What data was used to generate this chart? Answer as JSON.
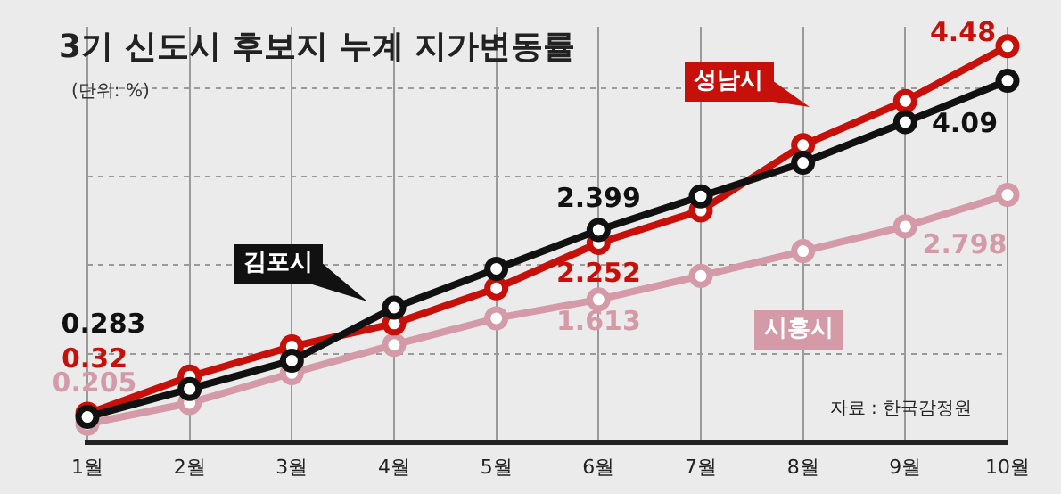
{
  "chart_data": {
    "type": "line",
    "title": "3기 신도시 후보지 누계 지가변동률",
    "subtitle": "(단위: %)",
    "annotations": [
      "자료 : 한국감정원"
    ],
    "categories": [
      "1월",
      "2월",
      "3월",
      "4월",
      "5월",
      "6월",
      "7월",
      "8월",
      "9월",
      "10월"
    ],
    "ylim": [
      0,
      4.7
    ],
    "yticks": [
      {
        "value": 1,
        "label": null
      },
      {
        "value": 2,
        "label": null
      },
      {
        "value": 3,
        "label": null
      },
      {
        "value": 4,
        "label": null
      }
    ],
    "grid": true,
    "legend": false,
    "marker": "circle",
    "line_style": "solid",
    "series": [
      {
        "name": "시흥시",
        "color": "#d49aa8",
        "values": [
          0.205,
          0.44,
          0.78,
          1.1,
          1.4,
          1.613,
          1.88,
          2.16,
          2.44,
          2.798
        ],
        "value_labels": [
          "0.205",
          null,
          null,
          null,
          null,
          "1.613",
          null,
          null,
          null,
          "2.798"
        ]
      },
      {
        "name": "성남시",
        "color": "#c8100a",
        "values": [
          0.32,
          0.74,
          1.08,
          1.34,
          1.74,
          2.252,
          2.62,
          3.36,
          3.86,
          4.48
        ],
        "value_labels": [
          "0.32",
          null,
          null,
          null,
          null,
          "2.252",
          null,
          null,
          null,
          "4.48"
        ]
      },
      {
        "name": "김포시",
        "color": "#111111",
        "values": [
          0.283,
          0.6,
          0.92,
          1.52,
          1.96,
          2.399,
          2.78,
          3.16,
          3.62,
          4.09
        ],
        "value_labels": [
          "0.283",
          null,
          null,
          null,
          null,
          "2.399",
          null,
          null,
          null,
          "4.09"
        ]
      }
    ]
  }
}
